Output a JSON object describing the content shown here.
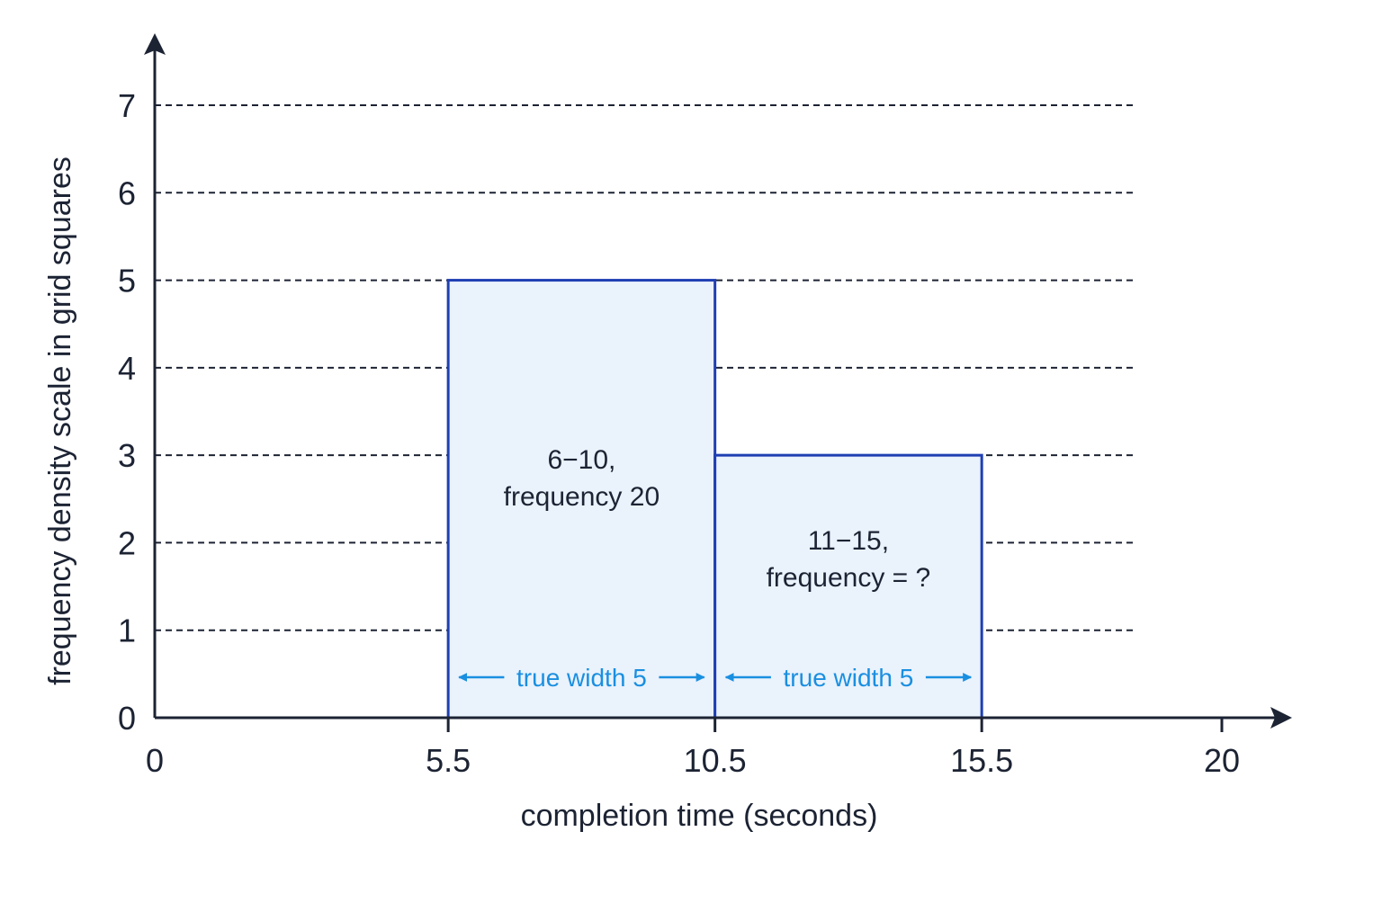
{
  "colors": {
    "axis": "#1c2333",
    "grid": "#1c2333",
    "bar_fill": "#eaf2fc",
    "bar_stroke": "#1f3fb3",
    "annotation": "#1a8fe0"
  },
  "chart_data": {
    "type": "bar",
    "title": "",
    "xlabel": "completion time (seconds)",
    "ylabel": "frequency density scale in grid squares",
    "xlim": [
      0,
      20
    ],
    "ylim": [
      0,
      7
    ],
    "x_ticks": [
      0,
      5.5,
      10.5,
      15.5,
      20
    ],
    "x_tick_labels": [
      "0",
      "5.5",
      "10.5",
      "15.5",
      "20"
    ],
    "y_ticks": [
      0,
      1,
      2,
      3,
      4,
      5,
      6,
      7
    ],
    "y_tick_labels": [
      "0",
      "1",
      "2",
      "3",
      "4",
      "5",
      "6",
      "7"
    ],
    "grid": "horizontal dashed",
    "bars": [
      {
        "x0": 5.5,
        "x1": 10.5,
        "height": 5,
        "label_line1": "6−10,",
        "label_line2": "frequency 20",
        "width_note": "true width 5"
      },
      {
        "x0": 10.5,
        "x1": 15.5,
        "height": 3,
        "label_line1": "11−15,",
        "label_line2": "frequency = ?",
        "width_note": "true width 5"
      }
    ]
  }
}
